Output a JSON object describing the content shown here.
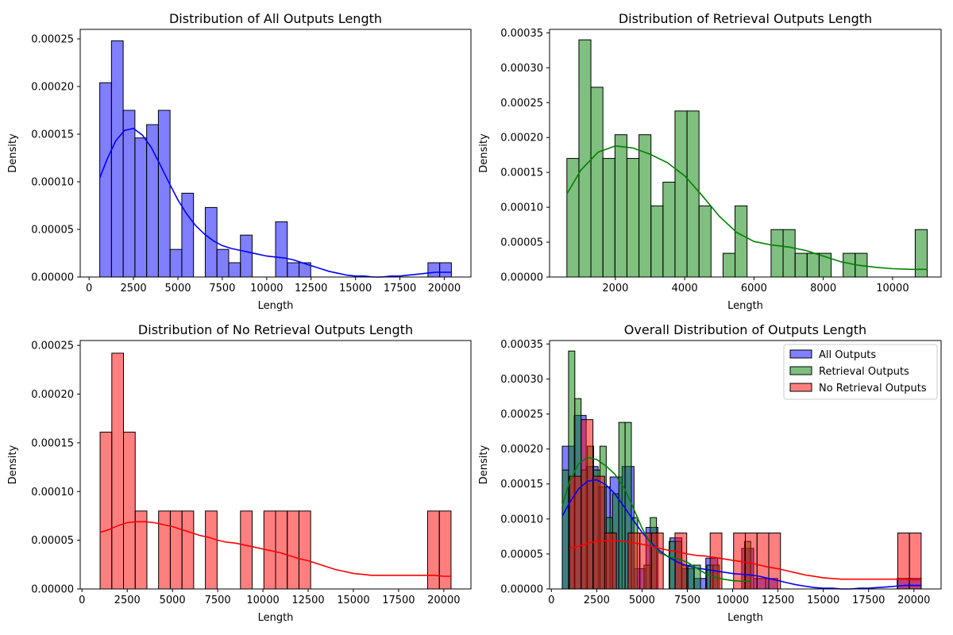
{
  "chart_data": [
    {
      "type": "histogram",
      "title": "Distribution of All Outputs Length",
      "xlabel": "Length",
      "ylabel": "Density",
      "xlim": [
        -500,
        21500
      ],
      "ylim": [
        0,
        0.00026
      ],
      "xticks": [
        0,
        2500,
        5000,
        7500,
        10000,
        12500,
        15000,
        17500,
        20000
      ],
      "yticks": [
        0.0,
        5e-05,
        0.0001,
        0.00015,
        0.0002,
        0.00025
      ],
      "xtick_labels": [
        "0",
        "2500",
        "5000",
        "7500",
        "10000",
        "12500",
        "15000",
        "17500",
        "20000"
      ],
      "ytick_labels": [
        "0.00000",
        "0.00005",
        "0.00010",
        "0.00015",
        "0.00020",
        "0.00025"
      ],
      "series": [
        {
          "color": "#0000ff",
          "bin_edges": [
            600,
            1260,
            1920,
            2580,
            3240,
            3900,
            4560,
            5220,
            5880,
            6540,
            7200,
            7860,
            8520,
            9180,
            9840,
            10500,
            11160,
            11820,
            12480,
            13140,
            13800,
            14460,
            15120,
            15780,
            16440,
            17100,
            17760,
            18420,
            19080,
            19740,
            20400
          ],
          "densities": [
            0.000204,
            0.000248,
            0.000175,
            0.000146,
            0.00016,
            0.000175,
            2.9e-05,
            8.8e-05,
            0,
            7.3e-05,
            2.9e-05,
            1.5e-05,
            4.4e-05,
            0,
            0,
            5.8e-05,
            1.5e-05,
            1.5e-05,
            0,
            0,
            0,
            0,
            0,
            0,
            0,
            0,
            0,
            0,
            1.5e-05,
            1.5e-05
          ],
          "kde": [
            [
              600,
              0.000104
            ],
            [
              1000,
              0.000123
            ],
            [
              1500,
              0.000143
            ],
            [
              2000,
              0.000154
            ],
            [
              2500,
              0.000156
            ],
            [
              3000,
              0.000149
            ],
            [
              3500,
              0.000136
            ],
            [
              4000,
              0.000118
            ],
            [
              4500,
              9.9e-05
            ],
            [
              5000,
              8.1e-05
            ],
            [
              5500,
              6.6e-05
            ],
            [
              6000,
              5.4e-05
            ],
            [
              6500,
              4.5e-05
            ],
            [
              7000,
              3.8e-05
            ],
            [
              7500,
              3.3e-05
            ],
            [
              8000,
              3e-05
            ],
            [
              8500,
              2.8e-05
            ],
            [
              9000,
              2.6e-05
            ],
            [
              9500,
              2.4e-05
            ],
            [
              10000,
              2.2e-05
            ],
            [
              10500,
              2.1e-05
            ],
            [
              11000,
              2e-05
            ],
            [
              11500,
              1.8e-05
            ],
            [
              12000,
              1.5e-05
            ],
            [
              12500,
              1.2e-05
            ],
            [
              13000,
              9e-06
            ],
            [
              13500,
              6e-06
            ],
            [
              14000,
              4e-06
            ],
            [
              14500,
              2e-06
            ],
            [
              15000,
              1e-06
            ],
            [
              15500,
              1e-06
            ],
            [
              16000,
              0
            ],
            [
              16500,
              0
            ],
            [
              17000,
              1e-06
            ],
            [
              17500,
              1e-06
            ],
            [
              18000,
              2e-06
            ],
            [
              18500,
              3e-06
            ],
            [
              19000,
              4e-06
            ],
            [
              19500,
              5e-06
            ],
            [
              20000,
              5e-06
            ],
            [
              20400,
              5e-06
            ]
          ]
        }
      ]
    },
    {
      "type": "histogram",
      "title": "Distribution of Retrieval Outputs Length",
      "xlabel": "Length",
      "ylabel": "Density",
      "xlim": [
        100,
        11400
      ],
      "ylim": [
        0,
        0.000355
      ],
      "xticks": [
        2000,
        4000,
        6000,
        8000,
        10000
      ],
      "yticks": [
        0.0,
        5e-05,
        0.0001,
        0.00015,
        0.0002,
        0.00025,
        0.0003,
        0.00035
      ],
      "xtick_labels": [
        "2000",
        "4000",
        "6000",
        "8000",
        "10000"
      ],
      "ytick_labels": [
        "0.00000",
        "0.00005",
        "0.00010",
        "0.00015",
        "0.00020",
        "0.00025",
        "0.00030",
        "0.00035"
      ],
      "series": [
        {
          "color": "#008000",
          "bin_edges": [
            600,
            947,
            1293,
            1640,
            1987,
            2333,
            2680,
            3027,
            3373,
            3720,
            4067,
            4413,
            4760,
            5107,
            5453,
            5800,
            6147,
            6493,
            6840,
            7187,
            7533,
            7880,
            8227,
            8573,
            8920,
            9267,
            9613,
            9960,
            10307,
            10653,
            11000
          ],
          "densities": [
            0.00017,
            0.00034,
            0.000272,
            0.00017,
            0.000204,
            0.00017,
            0.000204,
            0.000102,
            0.000136,
            0.000238,
            0.000238,
            0.000102,
            0,
            3.4e-05,
            0.000102,
            0,
            0,
            6.8e-05,
            6.8e-05,
            3.4e-05,
            3.4e-05,
            3.4e-05,
            0,
            3.4e-05,
            3.4e-05,
            0,
            0,
            0,
            0,
            6.8e-05
          ],
          "kde": [
            [
              600,
              0.000119
            ],
            [
              1000,
              0.000153
            ],
            [
              1500,
              0.000179
            ],
            [
              2000,
              0.000188
            ],
            [
              2500,
              0.000185
            ],
            [
              3000,
              0.000176
            ],
            [
              3500,
              0.000164
            ],
            [
              4000,
              0.000145
            ],
            [
              4500,
              0.000117
            ],
            [
              5000,
              8.7e-05
            ],
            [
              5500,
              6.4e-05
            ],
            [
              6000,
              5.1e-05
            ],
            [
              6500,
              4.6e-05
            ],
            [
              7000,
              4.3e-05
            ],
            [
              7500,
              3.8e-05
            ],
            [
              8000,
              3e-05
            ],
            [
              8500,
              2.2e-05
            ],
            [
              9000,
              1.7e-05
            ],
            [
              9500,
              1.4e-05
            ],
            [
              10000,
              1.2e-05
            ],
            [
              10500,
              1.1e-05
            ],
            [
              11000,
              1.1e-05
            ]
          ]
        }
      ]
    },
    {
      "type": "histogram",
      "title": "Distribution of No Retrieval Outputs Length",
      "xlabel": "Length",
      "ylabel": "Density",
      "xlim": [
        -100,
        21500
      ],
      "ylim": [
        0,
        0.000255
      ],
      "xticks": [
        0,
        2500,
        5000,
        7500,
        10000,
        12500,
        15000,
        17500,
        20000
      ],
      "yticks": [
        0.0,
        5e-05,
        0.0001,
        0.00015,
        0.0002,
        0.00025
      ],
      "xtick_labels": [
        "0",
        "2500",
        "5000",
        "7500",
        "10000",
        "12500",
        "15000",
        "17500",
        "20000"
      ],
      "ytick_labels": [
        "0.00000",
        "0.00005",
        "0.00010",
        "0.00015",
        "0.00020",
        "0.00025"
      ],
      "series": [
        {
          "color": "#ff0000",
          "bin_edges": [
            1000,
            1647,
            2293,
            2940,
            3587,
            4233,
            4880,
            5527,
            6173,
            6820,
            7467,
            8113,
            8760,
            9407,
            10053,
            10700,
            11347,
            11993,
            12640,
            13287,
            13933,
            14580,
            15227,
            15873,
            16520,
            17167,
            17813,
            18460,
            19107,
            19753,
            20400
          ],
          "densities": [
            0.000161,
            0.000242,
            0.000161,
            8e-05,
            0,
            8e-05,
            8e-05,
            8e-05,
            0,
            8e-05,
            0,
            0,
            8e-05,
            0,
            8e-05,
            8e-05,
            8e-05,
            8e-05,
            0,
            0,
            0,
            0,
            0,
            0,
            0,
            0,
            0,
            0,
            8e-05,
            8e-05
          ],
          "kde": [
            [
              1000,
              5.8e-05
            ],
            [
              1500,
              6.1e-05
            ],
            [
              2000,
              6.5e-05
            ],
            [
              2500,
              6.8e-05
            ],
            [
              3000,
              6.9e-05
            ],
            [
              3500,
              6.9e-05
            ],
            [
              4000,
              6.8e-05
            ],
            [
              4500,
              6.6e-05
            ],
            [
              5000,
              6.4e-05
            ],
            [
              5500,
              6.1e-05
            ],
            [
              6000,
              5.8e-05
            ],
            [
              6500,
              5.5e-05
            ],
            [
              7000,
              5.3e-05
            ],
            [
              7500,
              5e-05
            ],
            [
              8000,
              4.8e-05
            ],
            [
              8500,
              4.7e-05
            ],
            [
              9000,
              4.5e-05
            ],
            [
              9500,
              4.3e-05
            ],
            [
              10000,
              4.1e-05
            ],
            [
              10500,
              3.9e-05
            ],
            [
              11000,
              3.7e-05
            ],
            [
              11500,
              3.4e-05
            ],
            [
              12000,
              3.1e-05
            ],
            [
              12500,
              2.9e-05
            ],
            [
              13000,
              2.6e-05
            ],
            [
              13500,
              2.3e-05
            ],
            [
              14000,
              2e-05
            ],
            [
              14500,
              1.8e-05
            ],
            [
              15000,
              1.6e-05
            ],
            [
              15500,
              1.5e-05
            ],
            [
              16000,
              1.4e-05
            ],
            [
              16500,
              1.4e-05
            ],
            [
              17000,
              1.4e-05
            ],
            [
              17500,
              1.4e-05
            ],
            [
              18000,
              1.4e-05
            ],
            [
              18500,
              1.4e-05
            ],
            [
              19000,
              1.4e-05
            ],
            [
              19500,
              1.4e-05
            ],
            [
              20000,
              1.3e-05
            ],
            [
              20400,
              1.3e-05
            ]
          ]
        }
      ]
    },
    {
      "type": "histogram",
      "title": "Overall Distribution of Outputs Length",
      "xlabel": "Length",
      "ylabel": "Density",
      "xlim": [
        -100,
        21500
      ],
      "ylim": [
        0,
        0.000355
      ],
      "xticks": [
        0,
        2500,
        5000,
        7500,
        10000,
        12500,
        15000,
        17500,
        20000
      ],
      "yticks": [
        0.0,
        5e-05,
        0.0001,
        0.00015,
        0.0002,
        0.00025,
        0.0003,
        0.00035
      ],
      "xtick_labels": [
        "0",
        "2500",
        "5000",
        "7500",
        "10000",
        "12500",
        "15000",
        "17500",
        "20000"
      ],
      "ytick_labels": [
        "0.00000",
        "0.00005",
        "0.00010",
        "0.00015",
        "0.00020",
        "0.00025",
        "0.00030",
        "0.00035"
      ],
      "legend": {
        "position": "top-right",
        "entries": [
          {
            "label": "All Outputs",
            "color": "#0000ff"
          },
          {
            "label": "Retrieval Outputs",
            "color": "#008000"
          },
          {
            "label": "No Retrieval Outputs",
            "color": "#ff0000"
          }
        ]
      },
      "series_refs": [
        0,
        0,
        0
      ]
    }
  ]
}
